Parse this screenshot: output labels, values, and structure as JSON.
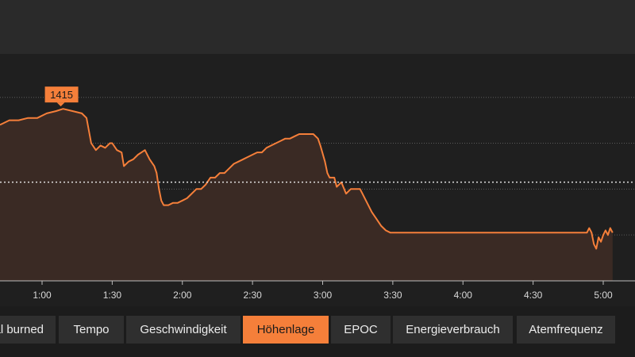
{
  "tabs": [
    {
      "label": "Kcal burned"
    },
    {
      "label": "Tempo"
    },
    {
      "label": "Geschwindigkeit"
    },
    {
      "label": "Höhenlage",
      "active": true
    },
    {
      "label": "EPOC"
    },
    {
      "label": "Energieverbrauch"
    },
    {
      "label": "Atemfrequenz"
    }
  ],
  "colors": {
    "accent": "#f57f3a",
    "area_fill": "#3a2a24",
    "grid": "#5a5a5a",
    "avg_line": "#e0e0e0"
  },
  "chart_data": {
    "type": "area",
    "ylabel": "",
    "xlabel": "",
    "x_unit": "seconds",
    "x_ticks": [
      {
        "value": 60,
        "label": "1:00"
      },
      {
        "value": 90,
        "label": "1:30"
      },
      {
        "value": 120,
        "label": "2:00"
      },
      {
        "value": 150,
        "label": "2:30"
      },
      {
        "value": 180,
        "label": "3:00"
      },
      {
        "value": 210,
        "label": "3:30"
      },
      {
        "value": 240,
        "label": "4:00"
      },
      {
        "value": 270,
        "label": "4:30"
      },
      {
        "value": 300,
        "label": "5:00"
      }
    ],
    "xlim": [
      42,
      314
    ],
    "ylim": [
      1340,
      1432
    ],
    "gridlines": [
      1420,
      1400,
      1380,
      1360
    ],
    "average": 1383,
    "marker": {
      "x": 68,
      "y": 1415,
      "label": "1415"
    },
    "points": [
      [
        42,
        1408
      ],
      [
        46,
        1410
      ],
      [
        50,
        1410
      ],
      [
        54,
        1411
      ],
      [
        58,
        1411
      ],
      [
        62,
        1413
      ],
      [
        66,
        1414
      ],
      [
        69,
        1415
      ],
      [
        73,
        1414
      ],
      [
        77,
        1413
      ],
      [
        79,
        1411
      ],
      [
        81,
        1400
      ],
      [
        83,
        1397
      ],
      [
        85,
        1399
      ],
      [
        87,
        1398
      ],
      [
        89,
        1400
      ],
      [
        90,
        1400
      ],
      [
        92,
        1397
      ],
      [
        94,
        1396
      ],
      [
        95,
        1390
      ],
      [
        97,
        1392
      ],
      [
        99,
        1393
      ],
      [
        101,
        1395
      ],
      [
        104,
        1397
      ],
      [
        106,
        1393
      ],
      [
        108,
        1390
      ],
      [
        109,
        1387
      ],
      [
        110,
        1380
      ],
      [
        111,
        1375
      ],
      [
        112,
        1373
      ],
      [
        114,
        1373
      ],
      [
        116,
        1374
      ],
      [
        118,
        1374
      ],
      [
        120,
        1375
      ],
      [
        122,
        1376
      ],
      [
        124,
        1378
      ],
      [
        126,
        1380
      ],
      [
        128,
        1380
      ],
      [
        130,
        1382
      ],
      [
        132,
        1385
      ],
      [
        134,
        1385
      ],
      [
        136,
        1387
      ],
      [
        138,
        1387
      ],
      [
        140,
        1389
      ],
      [
        142,
        1391
      ],
      [
        144,
        1392
      ],
      [
        146,
        1393
      ],
      [
        148,
        1394
      ],
      [
        150,
        1395
      ],
      [
        152,
        1396
      ],
      [
        154,
        1396
      ],
      [
        156,
        1398
      ],
      [
        158,
        1399
      ],
      [
        160,
        1400
      ],
      [
        162,
        1401
      ],
      [
        164,
        1402
      ],
      [
        166,
        1402
      ],
      [
        168,
        1403
      ],
      [
        170,
        1404
      ],
      [
        172,
        1404
      ],
      [
        174,
        1404
      ],
      [
        176,
        1404
      ],
      [
        178,
        1402
      ],
      [
        179,
        1399
      ],
      [
        181,
        1392
      ],
      [
        182,
        1387
      ],
      [
        183,
        1385
      ],
      [
        185,
        1385
      ],
      [
        186,
        1381
      ],
      [
        188,
        1383
      ],
      [
        190,
        1378
      ],
      [
        192,
        1380
      ],
      [
        194,
        1380
      ],
      [
        196,
        1380
      ],
      [
        197,
        1378
      ],
      [
        199,
        1374
      ],
      [
        201,
        1370
      ],
      [
        203,
        1367
      ],
      [
        205,
        1364
      ],
      [
        207,
        1362
      ],
      [
        209,
        1361
      ],
      [
        212,
        1361
      ],
      [
        215,
        1361
      ],
      [
        218,
        1361
      ],
      [
        222,
        1361
      ],
      [
        225,
        1361
      ],
      [
        228,
        1361
      ],
      [
        231,
        1361
      ],
      [
        234,
        1361
      ],
      [
        237,
        1361
      ],
      [
        240,
        1361
      ],
      [
        243,
        1361
      ],
      [
        246,
        1361
      ],
      [
        249,
        1361
      ],
      [
        252,
        1361
      ],
      [
        255,
        1361
      ],
      [
        258,
        1361
      ],
      [
        261,
        1361
      ],
      [
        264,
        1361
      ],
      [
        267,
        1361
      ],
      [
        270,
        1361
      ],
      [
        273,
        1361
      ],
      [
        276,
        1361
      ],
      [
        279,
        1361
      ],
      [
        282,
        1361
      ],
      [
        285,
        1361
      ],
      [
        288,
        1361
      ],
      [
        291,
        1361
      ],
      [
        293,
        1361
      ],
      [
        294,
        1363
      ],
      [
        295,
        1361
      ],
      [
        296,
        1356
      ],
      [
        297,
        1354
      ],
      [
        298,
        1359
      ],
      [
        299,
        1357
      ],
      [
        300,
        1360
      ],
      [
        301,
        1362
      ],
      [
        302,
        1360
      ],
      [
        303,
        1363
      ],
      [
        304,
        1361
      ]
    ]
  }
}
